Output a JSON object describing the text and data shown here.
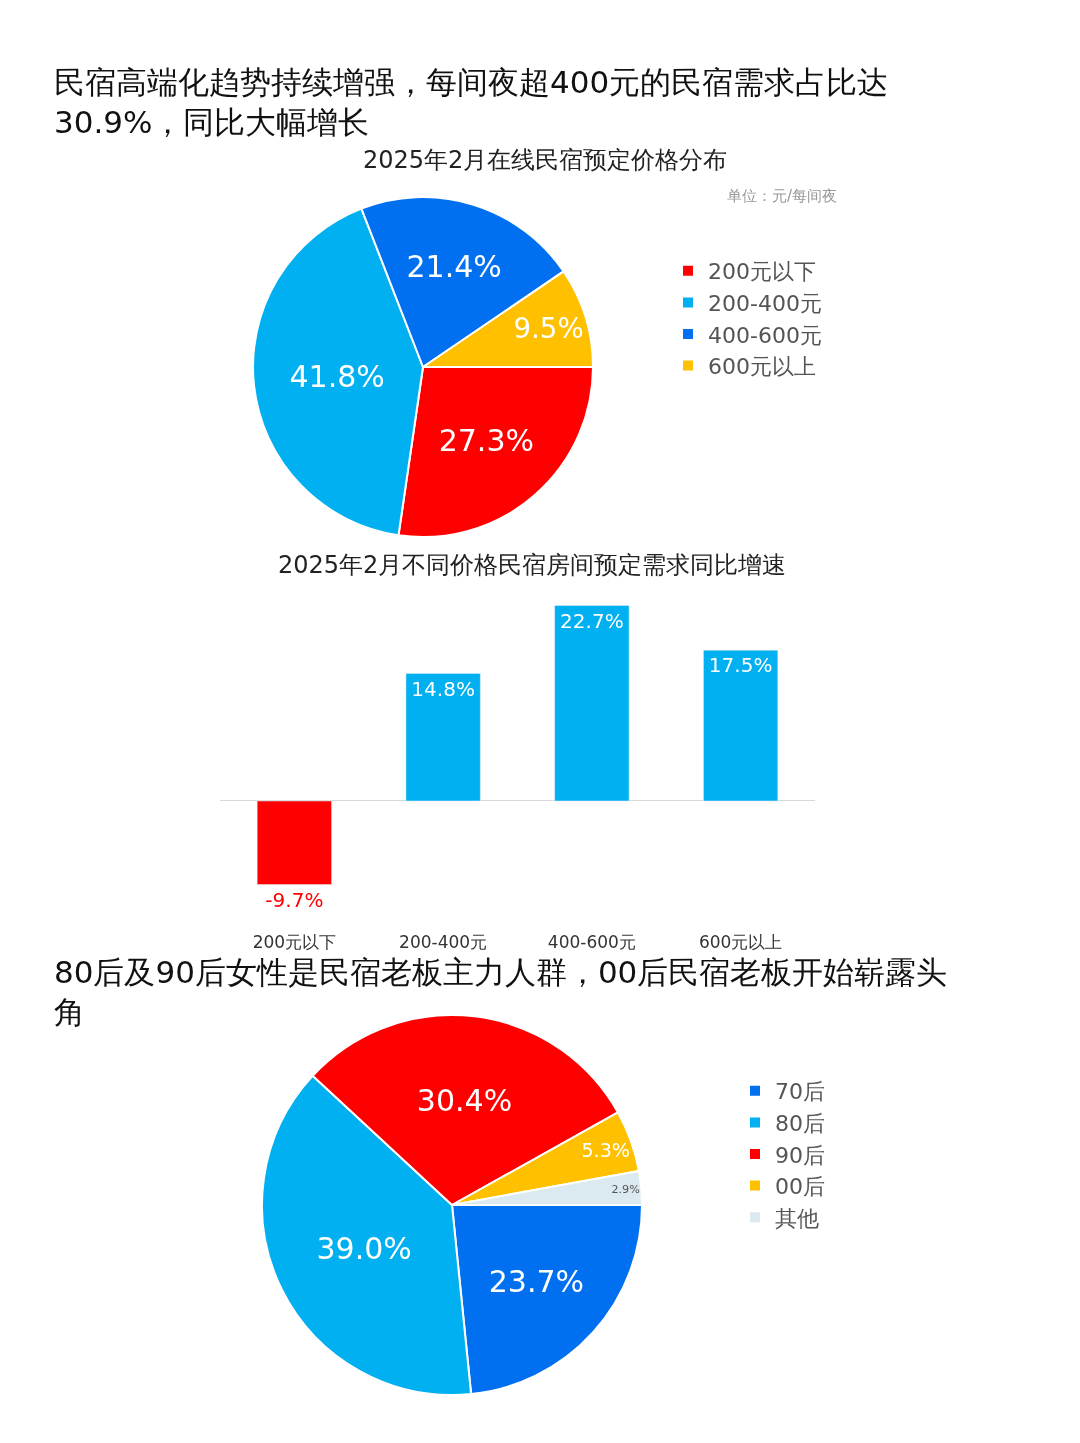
{
  "chart_data": [
    {
      "type": "pie",
      "title": "民宿高端化趋势持续增强，每间夜超400元的民宿需求占比达30.9%，同比大幅增长",
      "subtitle": "2025年2月在线民宿预定价格分布",
      "annotations": [
        "单位：元/每间夜"
      ],
      "categories": [
        "200元以下",
        "200-400元",
        "400-600元",
        "600元以上"
      ],
      "values": [
        27.3,
        41.8,
        21.4,
        9.5
      ],
      "value_labels": [
        "27.3%",
        "41.8%",
        "21.4%",
        "9.5%"
      ],
      "colors": [
        "#ff0000",
        "#00b0f0",
        "#0070f0",
        "#ffc000"
      ],
      "legend": "right"
    },
    {
      "type": "bar",
      "title": "2025年2月不同价格民宿房间预定需求同比增速",
      "categories": [
        "200元以下",
        "200-400元",
        "400-600元",
        "600元以上"
      ],
      "values": [
        -9.7,
        14.8,
        22.7,
        17.5
      ],
      "value_labels": [
        "-9.7%",
        "14.8%",
        "22.7%",
        "17.5%"
      ],
      "colors": [
        "#ff0000",
        "#00b0f0",
        "#00b0f0",
        "#00b0f0"
      ]
    },
    {
      "type": "pie",
      "title": "80后及90后女性是民宿老板主力人群，00后民宿老板开始崭露头角",
      "categories": [
        "70后",
        "80后",
        "90后",
        "00后",
        "其他"
      ],
      "values": [
        23.7,
        39.0,
        30.4,
        5.3,
        2.9
      ],
      "value_labels": [
        "23.7%",
        "39.0%",
        "30.4%",
        "5.3%",
        "2.9%"
      ],
      "colors": [
        "#0070f0",
        "#00b0f0",
        "#ff0000",
        "#ffc000",
        "#dbe9f0"
      ],
      "legend": "right"
    }
  ]
}
